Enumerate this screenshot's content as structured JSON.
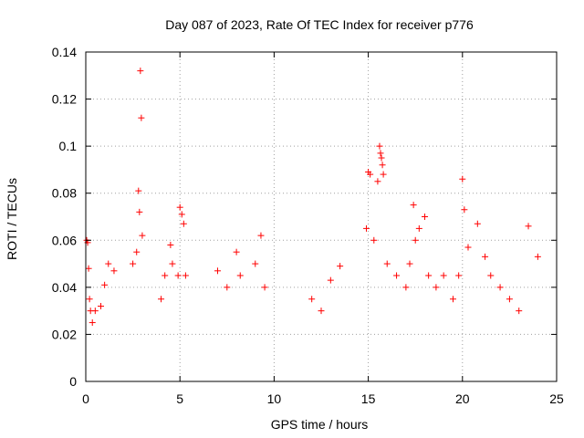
{
  "chart_data": {
    "type": "scatter",
    "title": "Day 087 of 2023, Rate Of TEC Index for receiver p776",
    "xlabel": "GPS time / hours",
    "ylabel": "ROTI / TECUs",
    "xlim": [
      0,
      25
    ],
    "ylim": [
      0,
      0.14
    ],
    "xticks": [
      0,
      5,
      10,
      15,
      20,
      25
    ],
    "yticks": [
      0,
      0.02,
      0.04,
      0.06,
      0.08,
      0.1,
      0.12,
      0.14
    ],
    "ytick_labels": [
      "0",
      "0.02",
      "0.04",
      "0.06",
      "0.08",
      "0.1",
      "0.12",
      "0.14"
    ],
    "grid": true,
    "marker": "+",
    "color": "#ff0000",
    "series": [
      {
        "x": [
          0.05,
          0.1,
          0.15,
          0.2,
          0.25,
          0.35,
          0.5,
          0.8,
          1.0,
          1.2,
          1.5,
          2.5,
          2.7,
          2.8,
          2.85,
          2.9,
          2.95,
          3.0,
          4.0,
          4.2,
          4.5,
          4.6,
          4.9,
          5.0,
          5.1,
          5.2,
          5.3,
          7.0,
          7.5,
          8.0,
          8.2,
          9.0,
          9.3,
          9.5,
          12.0,
          12.5,
          13.0,
          13.5,
          14.9,
          15.0,
          15.1,
          15.3,
          15.5,
          15.6,
          15.65,
          15.7,
          15.75,
          15.8,
          16.0,
          16.5,
          17.0,
          17.2,
          17.4,
          17.5,
          17.7,
          18.0,
          18.2,
          18.6,
          19.0,
          19.5,
          19.8,
          20.0,
          20.1,
          20.3,
          20.8,
          21.2,
          21.5,
          22.0,
          22.5,
          23.0,
          23.5,
          24.0
        ],
        "y": [
          0.06,
          0.059,
          0.048,
          0.035,
          0.03,
          0.025,
          0.03,
          0.032,
          0.041,
          0.05,
          0.047,
          0.05,
          0.055,
          0.081,
          0.072,
          0.132,
          0.112,
          0.062,
          0.035,
          0.045,
          0.058,
          0.05,
          0.045,
          0.074,
          0.071,
          0.067,
          0.045,
          0.047,
          0.04,
          0.055,
          0.045,
          0.05,
          0.062,
          0.04,
          0.035,
          0.03,
          0.043,
          0.049,
          0.065,
          0.089,
          0.088,
          0.06,
          0.085,
          0.1,
          0.097,
          0.095,
          0.092,
          0.088,
          0.05,
          0.045,
          0.04,
          0.05,
          0.075,
          0.06,
          0.065,
          0.07,
          0.045,
          0.04,
          0.045,
          0.035,
          0.045,
          0.086,
          0.073,
          0.057,
          0.067,
          0.053,
          0.045,
          0.04,
          0.035,
          0.03,
          0.066,
          0.053
        ]
      }
    ]
  }
}
